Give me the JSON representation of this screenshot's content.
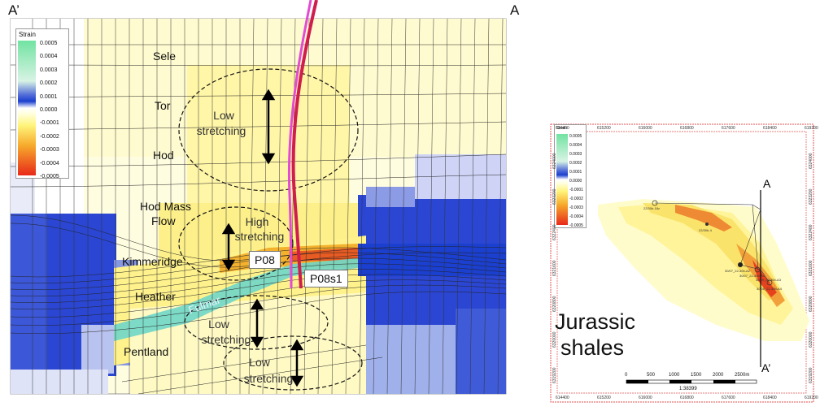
{
  "section": {
    "corner_left": "A’",
    "corner_right": "A",
    "legend": {
      "title": "Strain",
      "ticks": [
        "0.0005",
        "0.0004",
        "0.0003",
        "0.0002",
        "0.0001",
        "0.0000",
        "-0.0001",
        "-0.0002",
        "-0.0003",
        "-0.0004",
        "-0.0005"
      ]
    },
    "formations": [
      "Sele",
      "Tor",
      "Hod",
      "Hod Mass Flow",
      "Kimmeridge",
      "Heather",
      "Fulmar",
      "Pentland"
    ],
    "formation_parts": {
      "hodmass1": "Hod Mass",
      "hodmass2": "Flow"
    },
    "annotations": {
      "low1a": "Low",
      "low1b": "stretching",
      "high1": "High",
      "high2": "stretching",
      "low2a": "Low",
      "low2b": "stretching",
      "low3a": "Low",
      "low3b": "stretching"
    },
    "wells": {
      "p08": "P08",
      "p08s1": "P08s1"
    }
  },
  "map": {
    "legend": {
      "title": "Strain",
      "ticks": [
        "0.0005",
        "0.0004",
        "0.0003",
        "0.0002",
        "0.0001",
        "0.0000",
        "-0.0001",
        "-0.0002",
        "-0.0003",
        "-0.0004",
        "-0.0005"
      ]
    },
    "x_coords": [
      "614400",
      "615200",
      "616000",
      "616800",
      "617600",
      "618400",
      "619200"
    ],
    "y_coords": [
      "6324000",
      "6323200",
      "6322400",
      "6321600",
      "6320800",
      "6320000",
      "6319200"
    ],
    "label_a": "A",
    "label_a_prime": "A’",
    "title_line1": "Jurassic",
    "title_line2": "shales",
    "scalebar": [
      "0",
      "500",
      "1000",
      "1500",
      "2000",
      "2500m"
    ],
    "scale_ratio": "1:38399",
    "well_labels": [
      "22/30b-18z",
      "22/30b-4",
      "30/07_22-30b-A2",
      "30/07_22-30b-A1",
      "30/09_22-30b-A3",
      "30/08_22-30b-A4"
    ]
  },
  "colors": {
    "yellow_light": "#fffccc",
    "yellow": "#fbf38a",
    "orange": "#f5b52a",
    "red": "#e5421d",
    "blue_dark": "#1b3fcf",
    "blue_mid": "#5a74dc",
    "blue_light": "#cfd6f6",
    "green": "#79e3a8",
    "cyan": "#6fd6c8",
    "well_red": "#cf1d4f",
    "well_magenta": "#e24bd3"
  }
}
